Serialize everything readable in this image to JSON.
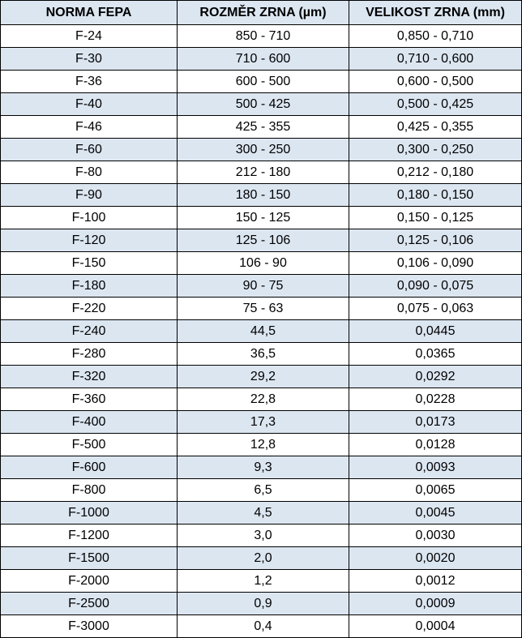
{
  "table": {
    "headers": [
      "NORMA FEPA",
      "ROZMĚR ZRNA (µm)",
      "VELIKOST ZRNA (mm)"
    ],
    "rows": [
      [
        "F-24",
        "850 - 710",
        "0,850 - 0,710"
      ],
      [
        "F-30",
        "710 - 600",
        "0,710 - 0,600"
      ],
      [
        "F-36",
        "600 - 500",
        "0,600 - 0,500"
      ],
      [
        "F-40",
        "500 - 425",
        "0,500 - 0,425"
      ],
      [
        "F-46",
        "425 - 355",
        "0,425 - 0,355"
      ],
      [
        "F-60",
        "300 - 250",
        "0,300 - 0,250"
      ],
      [
        "F-80",
        "212 - 180",
        "0,212 - 0,180"
      ],
      [
        "F-90",
        "180 - 150",
        "0,180 - 0,150"
      ],
      [
        "F-100",
        "150 - 125",
        "0,150 - 0,125"
      ],
      [
        "F-120",
        "125 - 106",
        "0,125 - 0,106"
      ],
      [
        "F-150",
        "106 - 90",
        "0,106 - 0,090"
      ],
      [
        "F-180",
        "90 - 75",
        "0,090 - 0,075"
      ],
      [
        "F-220",
        "75 - 63",
        "0,075 - 0,063"
      ],
      [
        "F-240",
        "44,5",
        "0,0445"
      ],
      [
        "F-280",
        "36,5",
        "0,0365"
      ],
      [
        "F-320",
        "29,2",
        "0,0292"
      ],
      [
        "F-360",
        "22,8",
        "0,0228"
      ],
      [
        "F-400",
        "17,3",
        "0,0173"
      ],
      [
        "F-500",
        "12,8",
        "0,0128"
      ],
      [
        "F-600",
        "9,3",
        "0,0093"
      ],
      [
        "F-800",
        "6,5",
        "0,0065"
      ],
      [
        "F-1000",
        "4,5",
        "0,0045"
      ],
      [
        "F-1200",
        "3,0",
        "0,0030"
      ],
      [
        "F-1500",
        "2,0",
        "0,0020"
      ],
      [
        "F-2000",
        "1,2",
        "0,0012"
      ],
      [
        "F-2500",
        "0,9",
        "0,0009"
      ],
      [
        "F-3000",
        "0,4",
        "0,0004"
      ]
    ]
  },
  "colors": {
    "header_bg": "#dce6f1",
    "stripe_bg": "#dce6f1",
    "plain_bg": "#ffffff",
    "border": "#000000"
  }
}
